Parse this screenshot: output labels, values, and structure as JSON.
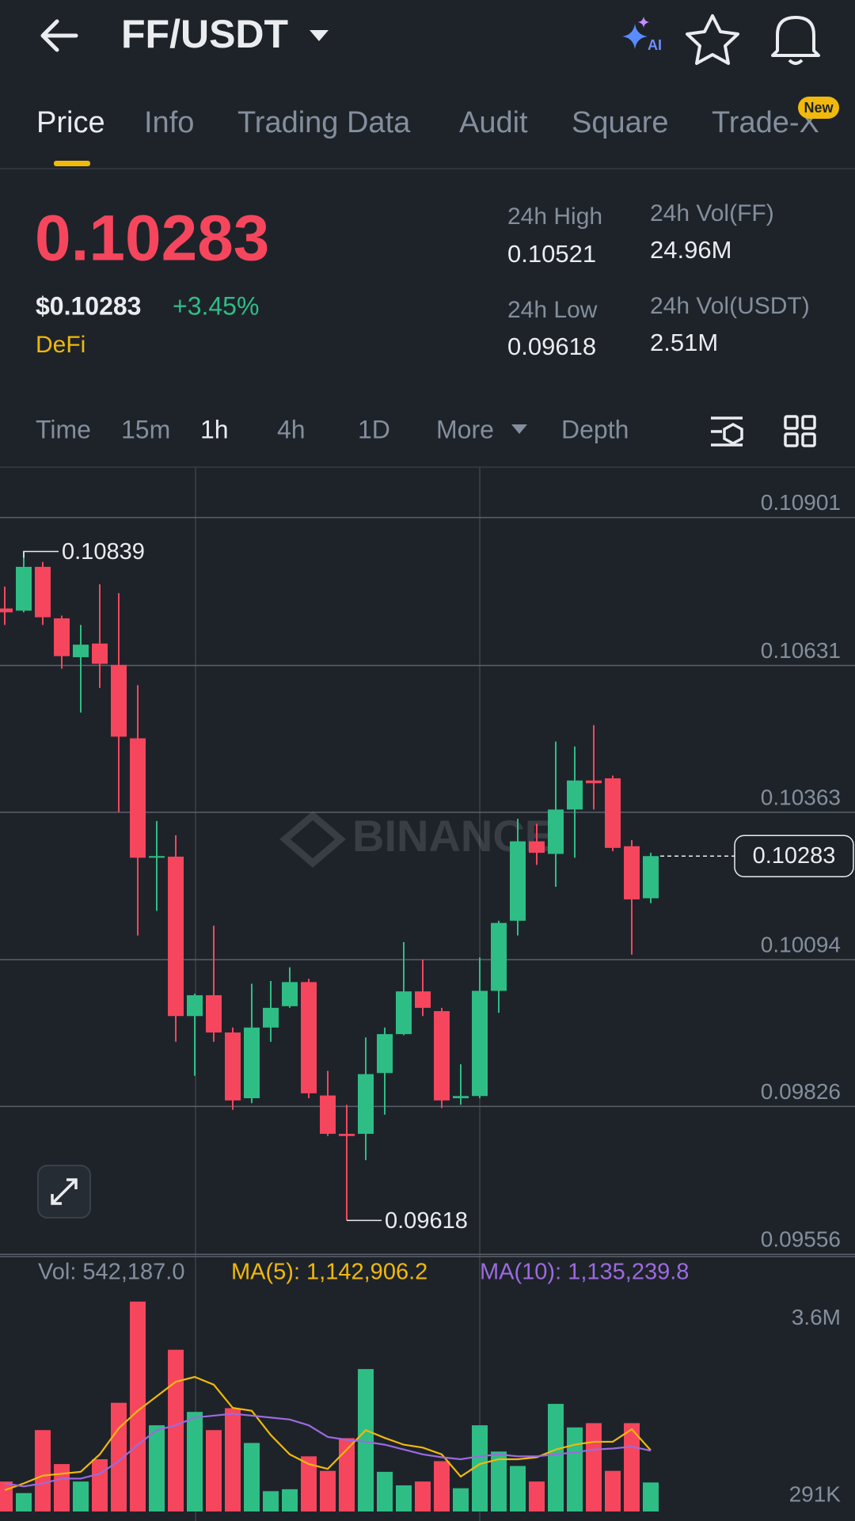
{
  "header": {
    "title": "FF/USDT",
    "ai_label": "AI"
  },
  "tabs": {
    "items": [
      "Price",
      "Info",
      "Trading Data",
      "Audit",
      "Square",
      "Trade-X"
    ],
    "badge": "New"
  },
  "ticker": {
    "price": "0.10283",
    "usd_price": "$0.10283",
    "change": "+3.45%",
    "sector": "DeFi",
    "stats": [
      {
        "label": "24h High",
        "value": "0.10521"
      },
      {
        "label": "24h Vol(FF)",
        "value": "24.96M"
      },
      {
        "label": "24h Low",
        "value": "0.09618"
      },
      {
        "label": "24h Vol(USDT)",
        "value": "2.51M"
      }
    ]
  },
  "timeframes": [
    "Time",
    "15m",
    "1h",
    "4h",
    "1D",
    "More",
    "Depth"
  ],
  "watermark": "BINANCE",
  "chart_data": [
    {
      "type": "candlestick",
      "categories": [
        null,
        null,
        null,
        null,
        null,
        null,
        null,
        null,
        null,
        null,
        null,
        null,
        null,
        null,
        null,
        null,
        null,
        null,
        null,
        null,
        null,
        null,
        null,
        null,
        null,
        null,
        null,
        null,
        null,
        null,
        null,
        null,
        null,
        null,
        null
      ],
      "open": [
        0.10735,
        0.10731,
        0.10811,
        0.10717,
        0.10646,
        0.10671,
        0.10632,
        0.10498,
        0.1028,
        0.10282,
        0.09991,
        0.10029,
        0.09961,
        0.09841,
        0.0997,
        0.10009,
        0.10053,
        0.09846,
        0.09776,
        0.09776,
        0.09887,
        0.09958,
        0.10036,
        0.1,
        0.09841,
        0.09845,
        0.10037,
        0.10165,
        0.1031,
        0.10287,
        0.10368,
        0.10421,
        0.10425,
        0.10301,
        0.10206
      ],
      "high": [
        0.10775,
        0.10839,
        0.1082,
        0.10722,
        0.10705,
        0.10779,
        0.10763,
        0.10595,
        0.10347,
        0.10321,
        0.10032,
        0.10156,
        0.0997,
        0.1005,
        0.10055,
        0.1008,
        0.10059,
        0.09891,
        0.09829,
        0.09952,
        0.0997,
        0.10126,
        0.10094,
        0.10006,
        0.09903,
        0.10098,
        0.10165,
        0.10351,
        0.10342,
        0.10492,
        0.10483,
        0.10522,
        0.1043,
        0.10312,
        0.10289
      ],
      "low": [
        0.10705,
        0.10728,
        0.10705,
        0.10625,
        0.10545,
        0.1059,
        0.10363,
        0.10138,
        0.10183,
        0.09944,
        0.09882,
        0.09944,
        0.0982,
        0.09832,
        0.09944,
        0.10006,
        0.09841,
        0.09772,
        0.09618,
        0.09728,
        0.09811,
        0.09956,
        0.09991,
        0.09823,
        0.09829,
        0.09841,
        0.09997,
        0.10138,
        0.10267,
        0.10227,
        0.1028,
        0.10368,
        0.10292,
        0.10103,
        0.10197
      ],
      "close": [
        0.10728,
        0.10811,
        0.10719,
        0.10648,
        0.10669,
        0.10634,
        0.10501,
        0.1028,
        0.10283,
        0.09991,
        0.10029,
        0.09961,
        0.09837,
        0.0997,
        0.10006,
        0.10053,
        0.0985,
        0.09776,
        0.09772,
        0.09885,
        0.09958,
        0.10036,
        0.10006,
        0.09837,
        0.09845,
        0.10037,
        0.10161,
        0.1031,
        0.10289,
        0.10368,
        0.10421,
        0.10416,
        0.10298,
        0.10204,
        0.10283
      ],
      "up_color": "#2ebd85",
      "down_color": "#f6465d",
      "ylim": [
        0.09552,
        0.10993
      ],
      "yticks": [
        0.10901,
        0.10631,
        0.10363,
        0.10094,
        0.09826,
        0.09556
      ],
      "grid": true,
      "last_price": 0.10283
    },
    {
      "type": "bar",
      "values": [
        560000,
        344000,
        1520000,
        886000,
        560000,
        976000,
        2030000,
        3920000,
        1610000,
        3020000,
        1860000,
        1520000,
        1930000,
        1280000,
        380000,
        416000,
        1030000,
        759000,
        1370000,
        2660000,
        741000,
        488000,
        560000,
        940000,
        434000,
        1610000,
        1120000,
        850000,
        560000,
        2010000,
        1570000,
        1650000,
        759000,
        1650000,
        542187
      ],
      "legend": [
        "Vol: 542,187.0",
        "MA(5): 1,142,906.2",
        "MA(10): 1,135,239.8"
      ],
      "series": [
        {
          "type": "line",
          "color": "#f0b90b",
          "values": [
            397800,
            524400,
            669000,
            705200,
            741400,
            1066800,
            1555100,
            1880500,
            2151800,
            2423000,
            2513400,
            2368700,
            1934800,
            1880500,
            1428500,
            1066800,
            886000,
            795600,
            1157200,
            1518900,
            1374200,
            1247700,
            1193400,
            1066800,
            651000,
            886000,
            976400,
            976400,
            1012600,
            1157200,
            1247700,
            1301900,
            1301900,
            1537000,
            1142906.2
          ]
        },
        {
          "type": "line",
          "color": "#9c6ade",
          "values": [
            524400,
            470100,
            524400,
            614800,
            614800,
            705200,
            940300,
            1247700,
            1518900,
            1609300,
            1754000,
            1790100,
            1826300,
            1790100,
            1754000,
            1717800,
            1609300,
            1392300,
            1338100,
            1301900,
            1247700,
            1157200,
            1066800,
            1012600,
            976400,
            1030700,
            1066800,
            1030700,
            1030700,
            1066800,
            1103000,
            1157200,
            1175300,
            1211500,
            1135239.8
          ]
        }
      ],
      "ylim": [
        0,
        4140000
      ],
      "yticks": [
        {
          "value": 3600000,
          "label": "3.6M"
        },
        {
          "value": 291000,
          "label": "291K"
        }
      ]
    }
  ]
}
